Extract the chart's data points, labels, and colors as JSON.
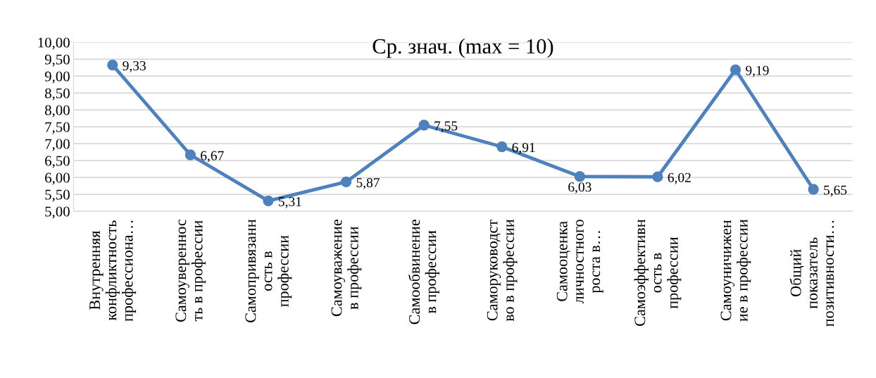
{
  "chart_data": {
    "type": "line",
    "title": "Ср. знач. (max = 10)",
    "categories": [
      "Внутренняя\nконфликтность\nпрофессиона…",
      "Самоувереннос\nть в профессии",
      "Самопривязанн\nость в\nпрофессии",
      "Самоуважение\nв профессии",
      "Самообвинение\nв профессии",
      "Саморуководст\nво в профессии",
      "Самооценка\nличностного\nроста в…",
      "Самоэффективн\nость в\nпрофессии",
      "Самоуничижен\nие в профессии",
      "Общий\nпоказатель\nпозитивности…"
    ],
    "series": [
      {
        "color": "#4f81bd",
        "values": [
          9.33,
          6.67,
          5.31,
          5.87,
          7.55,
          6.91,
          6.03,
          6.02,
          9.19,
          5.65
        ],
        "value_labels": [
          "9,33",
          "6,67",
          "5,31",
          "5,87",
          "7,55",
          "6,91",
          "6,03",
          "6,02",
          "9,19",
          "5,65"
        ]
      }
    ],
    "ylim": [
      5,
      10
    ],
    "yticks": [
      {
        "value": 5,
        "label": "5,00"
      },
      {
        "value": 5.5,
        "label": "5,50"
      },
      {
        "value": 6,
        "label": "6,00"
      },
      {
        "value": 6.5,
        "label": "6,50"
      },
      {
        "value": 7,
        "label": "7,00"
      },
      {
        "value": 7.5,
        "label": "7,50"
      },
      {
        "value": 8,
        "label": "8,00"
      },
      {
        "value": 8.5,
        "label": "8,50"
      },
      {
        "value": 9,
        "label": "9,00"
      },
      {
        "value": 9.5,
        "label": "9,50"
      },
      {
        "value": 10,
        "label": "10,00"
      }
    ],
    "grid": "y",
    "marker": "circle",
    "line_style": "solid"
  }
}
